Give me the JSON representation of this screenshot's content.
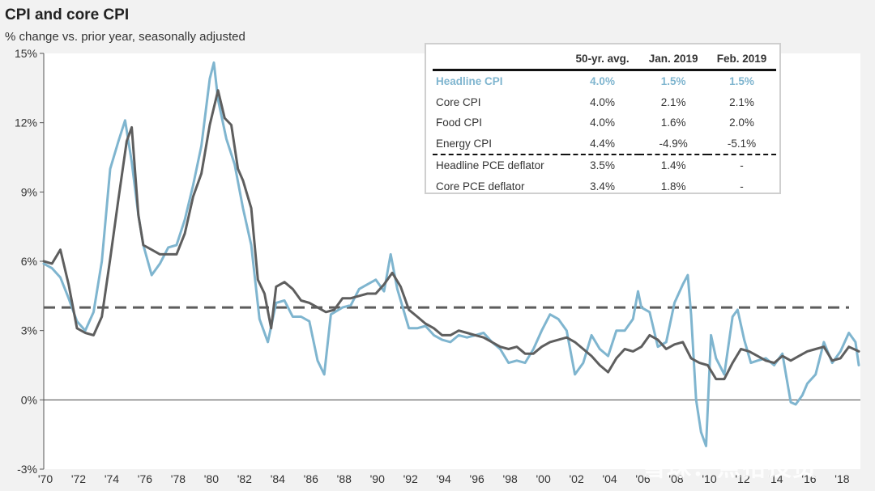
{
  "chart_data": {
    "type": "line",
    "title": "CPI and core CPI",
    "subtitle": "% change vs. prior year, seasonally adjusted",
    "xlabel": "",
    "ylabel": "",
    "xlim": [
      1970,
      2019.2
    ],
    "ylim": [
      -3,
      15
    ],
    "y_ticks": [
      -3,
      0,
      3,
      6,
      9,
      12,
      15
    ],
    "y_tick_labels": [
      "-3%",
      "0%",
      "3%",
      "6%",
      "9%",
      "12%",
      "15%"
    ],
    "x_ticks": [
      1970,
      1972,
      1974,
      1976,
      1978,
      1980,
      1982,
      1984,
      1986,
      1988,
      1990,
      1992,
      1994,
      1996,
      1998,
      2000,
      2002,
      2004,
      2006,
      2008,
      2010,
      2012,
      2014,
      2016,
      2018
    ],
    "x_tick_labels": [
      "'70",
      "'72",
      "'74",
      "'76",
      "'78",
      "'80",
      "'82",
      "'84",
      "'86",
      "'88",
      "'90",
      "'92",
      "'94",
      "'96",
      "'98",
      "'00",
      "'02",
      "'04",
      "'06",
      "'08",
      "'10",
      "'12",
      "'14",
      "'16",
      "'18"
    ],
    "reference_line": {
      "value": 4.0,
      "style": "dashed",
      "color": "#5c5c5c"
    },
    "series": [
      {
        "name": "Headline CPI",
        "color": "#7fb5cf",
        "x": [
          1970.0,
          1970.5,
          1971.0,
          1971.5,
          1972.0,
          1972.5,
          1973.0,
          1973.5,
          1974.0,
          1974.5,
          1974.9,
          1975.3,
          1975.7,
          1976.0,
          1976.5,
          1977.0,
          1977.5,
          1978.0,
          1978.5,
          1979.0,
          1979.5,
          1980.0,
          1980.25,
          1980.5,
          1981.0,
          1981.5,
          1982.0,
          1982.5,
          1983.0,
          1983.5,
          1984.0,
          1984.5,
          1985.0,
          1985.5,
          1986.0,
          1986.5,
          1986.9,
          1987.3,
          1988.0,
          1988.5,
          1989.0,
          1989.5,
          1990.0,
          1990.5,
          1990.9,
          1991.3,
          1992.0,
          1992.5,
          1993.0,
          1993.5,
          1994.0,
          1994.5,
          1995.0,
          1995.5,
          1996.0,
          1996.5,
          1997.0,
          1997.5,
          1998.0,
          1998.5,
          1999.0,
          1999.5,
          2000.0,
          2000.5,
          2001.0,
          2001.5,
          2002.0,
          2002.5,
          2003.0,
          2003.5,
          2004.0,
          2004.5,
          2005.0,
          2005.5,
          2005.8,
          2006.0,
          2006.5,
          2007.0,
          2007.5,
          2008.0,
          2008.5,
          2008.8,
          2009.0,
          2009.3,
          2009.6,
          2009.9,
          2010.2,
          2010.5,
          2011.0,
          2011.5,
          2011.8,
          2012.2,
          2012.6,
          2013.0,
          2013.5,
          2014.0,
          2014.5,
          2015.0,
          2015.3,
          2015.7,
          2016.0,
          2016.5,
          2017.0,
          2017.5,
          2018.0,
          2018.5,
          2018.9,
          2019.1
        ],
        "values": [
          5.9,
          5.7,
          5.3,
          4.4,
          3.4,
          3.0,
          3.8,
          6.0,
          10.0,
          11.2,
          12.1,
          10.3,
          8.0,
          6.7,
          5.4,
          5.9,
          6.6,
          6.7,
          7.8,
          9.3,
          11.0,
          13.9,
          14.6,
          13.0,
          11.3,
          10.2,
          8.3,
          6.7,
          3.5,
          2.5,
          4.2,
          4.3,
          3.6,
          3.6,
          3.4,
          1.7,
          1.1,
          3.7,
          4.0,
          4.1,
          4.8,
          5.0,
          5.2,
          4.7,
          6.3,
          4.8,
          3.1,
          3.1,
          3.2,
          2.8,
          2.6,
          2.5,
          2.8,
          2.7,
          2.8,
          2.9,
          2.5,
          2.2,
          1.6,
          1.7,
          1.6,
          2.2,
          3.0,
          3.7,
          3.5,
          3.0,
          1.1,
          1.6,
          2.8,
          2.2,
          1.9,
          3.0,
          3.0,
          3.5,
          4.7,
          4.0,
          3.8,
          2.3,
          2.5,
          4.2,
          5.0,
          5.4,
          3.7,
          0.0,
          -1.4,
          -2.0,
          2.8,
          1.8,
          1.1,
          3.6,
          3.9,
          2.6,
          1.6,
          1.7,
          1.8,
          1.5,
          2.0,
          -0.1,
          -0.2,
          0.2,
          0.7,
          1.1,
          2.5,
          1.6,
          2.1,
          2.9,
          2.5,
          1.5
        ]
      },
      {
        "name": "Core CPI",
        "color": "#5e5e5e",
        "x": [
          1970.0,
          1970.5,
          1971.0,
          1971.5,
          1972.0,
          1972.5,
          1973.0,
          1973.5,
          1974.0,
          1974.5,
          1975.0,
          1975.3,
          1975.7,
          1976.0,
          1976.5,
          1977.0,
          1977.5,
          1978.0,
          1978.5,
          1979.0,
          1979.5,
          1980.0,
          1980.5,
          1980.9,
          1981.3,
          1981.7,
          1982.0,
          1982.5,
          1982.9,
          1983.3,
          1983.7,
          1984.0,
          1984.5,
          1985.0,
          1985.5,
          1986.0,
          1986.5,
          1987.0,
          1987.5,
          1988.0,
          1988.5,
          1989.0,
          1989.5,
          1990.0,
          1990.5,
          1991.0,
          1991.5,
          1992.0,
          1992.5,
          1993.0,
          1993.5,
          1994.0,
          1994.5,
          1995.0,
          1995.5,
          1996.0,
          1996.5,
          1997.0,
          1997.5,
          1998.0,
          1998.5,
          1999.0,
          1999.5,
          2000.0,
          2000.5,
          2001.0,
          2001.5,
          2002.0,
          2002.5,
          2003.0,
          2003.5,
          2004.0,
          2004.5,
          2005.0,
          2005.5,
          2006.0,
          2006.5,
          2007.0,
          2007.5,
          2008.0,
          2008.5,
          2009.0,
          2009.5,
          2010.0,
          2010.5,
          2011.0,
          2011.5,
          2012.0,
          2012.5,
          2013.0,
          2013.5,
          2014.0,
          2014.5,
          2015.0,
          2015.5,
          2016.0,
          2016.5,
          2017.0,
          2017.5,
          2018.0,
          2018.5,
          2019.1
        ],
        "values": [
          6.0,
          5.9,
          6.5,
          5.0,
          3.1,
          2.9,
          2.8,
          3.6,
          6.1,
          8.7,
          11.2,
          11.8,
          8.0,
          6.7,
          6.5,
          6.3,
          6.3,
          6.3,
          7.2,
          8.8,
          9.8,
          11.9,
          13.4,
          12.2,
          11.9,
          10.0,
          9.5,
          8.3,
          5.2,
          4.6,
          3.1,
          4.9,
          5.1,
          4.8,
          4.3,
          4.2,
          4.0,
          3.8,
          3.9,
          4.4,
          4.4,
          4.5,
          4.6,
          4.6,
          5.0,
          5.5,
          4.9,
          3.9,
          3.6,
          3.3,
          3.1,
          2.8,
          2.8,
          3.0,
          2.9,
          2.8,
          2.7,
          2.5,
          2.3,
          2.2,
          2.3,
          2.0,
          2.0,
          2.3,
          2.5,
          2.6,
          2.7,
          2.5,
          2.2,
          1.9,
          1.5,
          1.2,
          1.8,
          2.2,
          2.1,
          2.3,
          2.8,
          2.6,
          2.2,
          2.4,
          2.5,
          1.8,
          1.6,
          1.5,
          0.9,
          0.9,
          1.6,
          2.2,
          2.1,
          1.9,
          1.7,
          1.6,
          1.9,
          1.7,
          1.9,
          2.1,
          2.2,
          2.3,
          1.7,
          1.8,
          2.3,
          2.1
        ]
      }
    ]
  },
  "table": {
    "headers": [
      "",
      "50-yr. avg.",
      "Jan. 2019",
      "Feb. 2019"
    ],
    "rows": [
      [
        "Headline CPI",
        "4.0%",
        "1.5%",
        "1.5%"
      ],
      [
        "Core CPI",
        "4.0%",
        "2.1%",
        "2.1%"
      ],
      [
        "Food CPI",
        "4.0%",
        "1.6%",
        "2.0%"
      ],
      [
        "Energy CPI",
        "4.4%",
        "-4.9%",
        "-5.1%"
      ],
      [
        "Headline PCE deflator",
        "3.5%",
        "1.4%",
        "-"
      ],
      [
        "Core PCE deflator",
        "3.4%",
        "1.8%",
        "-"
      ]
    ]
  },
  "watermark": "雪球：点拾投资"
}
